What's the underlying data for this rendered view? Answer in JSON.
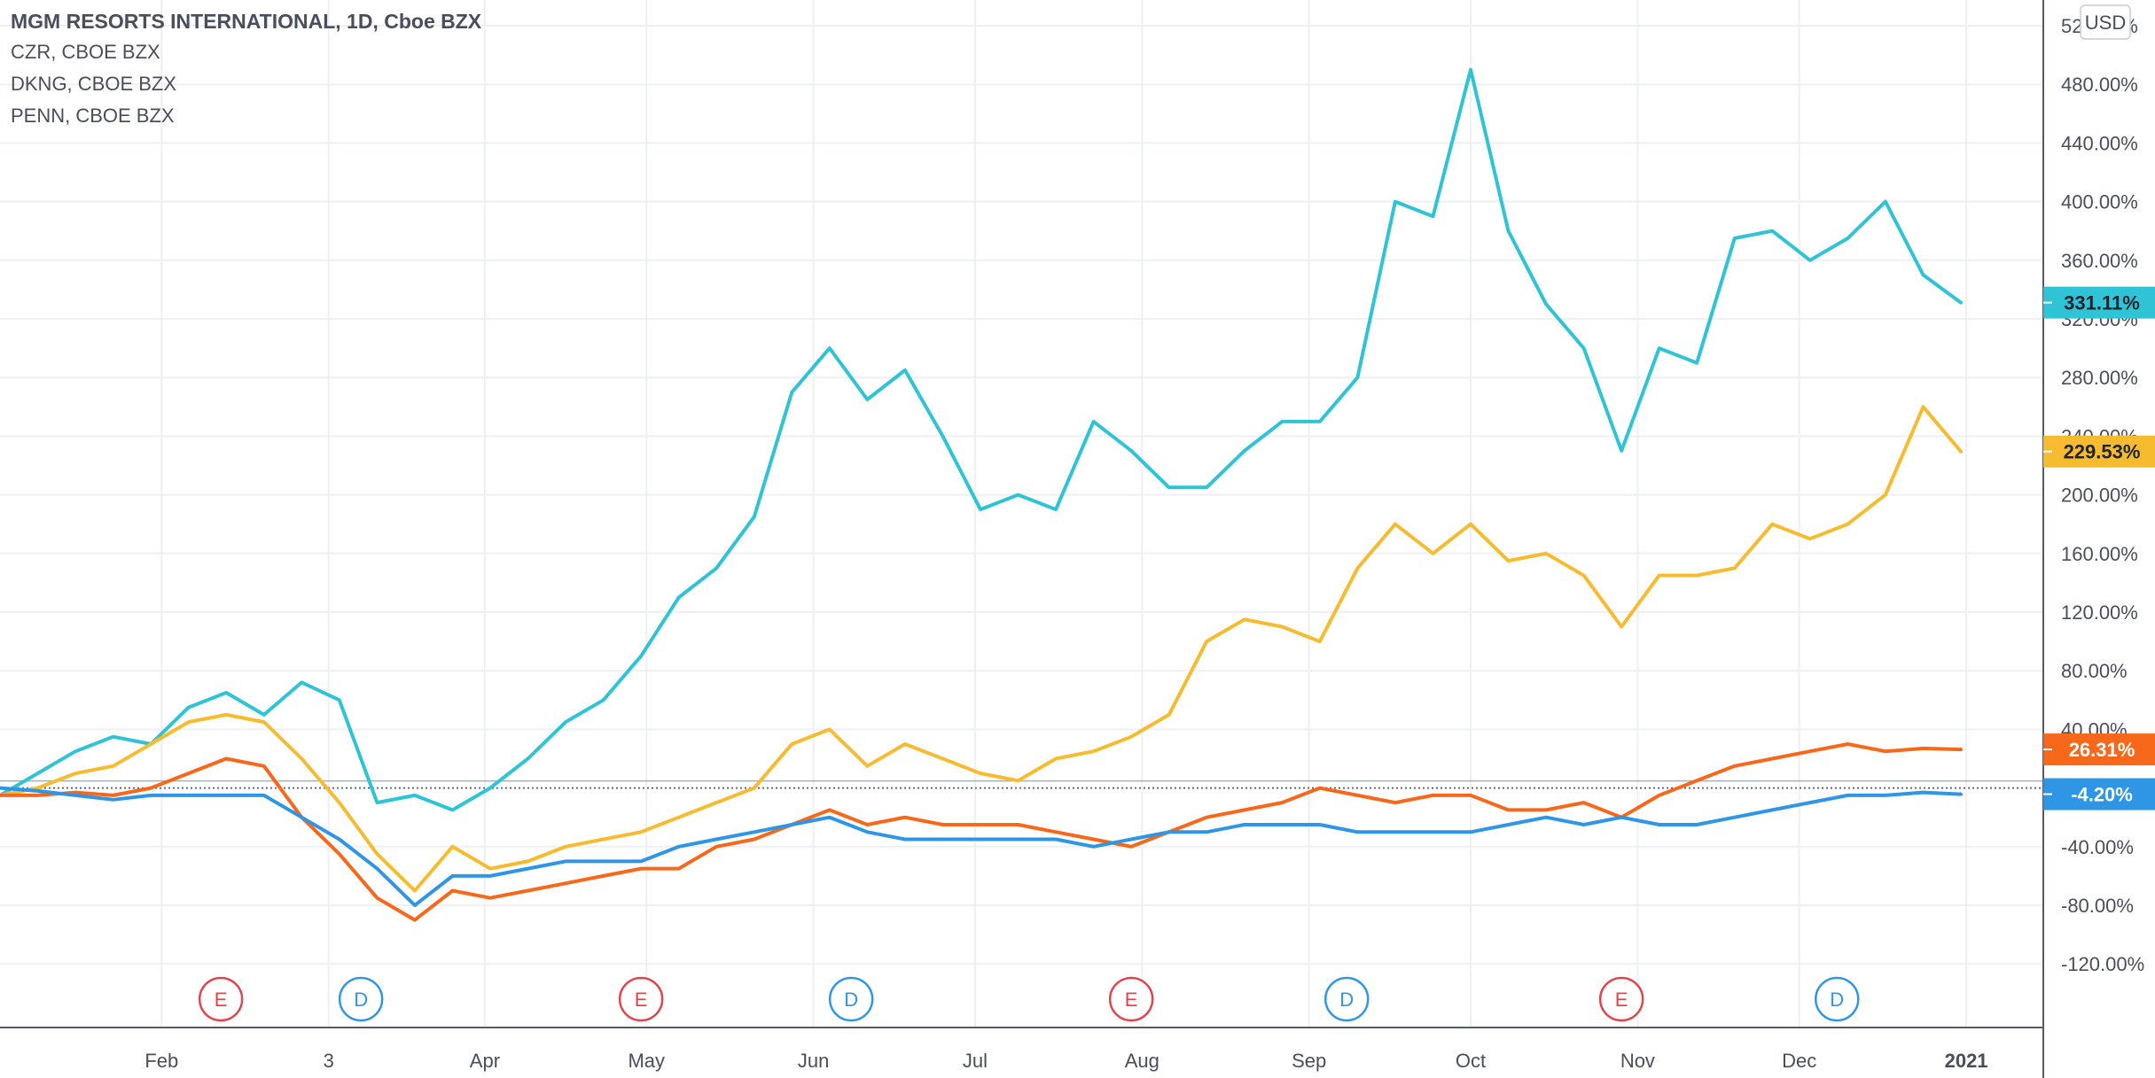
{
  "legend": {
    "main": "MGM RESORTS INTERNATIONAL, 1D, Cboe BZX",
    "comparisons": [
      "CZR, CBOE BZX",
      "DKNG, CBOE BZX",
      "PENN, CBOE BZX"
    ]
  },
  "currency_label": "USD",
  "colors": {
    "grid": "#eef0f3",
    "axis_line": "#555a66",
    "tick_text": "#4a4e5c",
    "baseline": "#5b6e80",
    "earnings": "#e0444c",
    "dividend": "#2f96e6"
  },
  "chart_data": {
    "type": "line",
    "title": "MGM RESORTS INTERNATIONAL, 1D, Cboe BZX",
    "xlabel": "",
    "ylabel": "",
    "x": [
      "2020-01-02",
      "2020-01-09",
      "2020-01-16",
      "2020-01-23",
      "2020-01-30",
      "2020-02-06",
      "2020-02-13",
      "2020-02-20",
      "2020-02-27",
      "2020-03-05",
      "2020-03-12",
      "2020-03-19",
      "2020-03-26",
      "2020-04-02",
      "2020-04-09",
      "2020-04-16",
      "2020-04-23",
      "2020-04-30",
      "2020-05-07",
      "2020-05-14",
      "2020-05-21",
      "2020-05-28",
      "2020-06-04",
      "2020-06-11",
      "2020-06-18",
      "2020-06-25",
      "2020-07-02",
      "2020-07-09",
      "2020-07-16",
      "2020-07-23",
      "2020-07-30",
      "2020-08-06",
      "2020-08-13",
      "2020-08-20",
      "2020-08-27",
      "2020-09-03",
      "2020-09-10",
      "2020-09-17",
      "2020-09-24",
      "2020-10-01",
      "2020-10-08",
      "2020-10-15",
      "2020-10-22",
      "2020-10-29",
      "2020-11-05",
      "2020-11-12",
      "2020-11-19",
      "2020-11-26",
      "2020-12-03",
      "2020-12-10",
      "2020-12-17",
      "2020-12-24",
      "2020-12-31"
    ],
    "series": [
      {
        "name": "DKNG",
        "color": "#2ec4d6",
        "last_label": "331.11%",
        "values": [
          -5,
          10,
          25,
          35,
          30,
          55,
          65,
          50,
          72,
          60,
          -10,
          -5,
          -15,
          0,
          20,
          45,
          60,
          90,
          130,
          150,
          185,
          270,
          300,
          265,
          285,
          240,
          190,
          200,
          190,
          250,
          230,
          205,
          205,
          230,
          250,
          250,
          280,
          400,
          390,
          490,
          380,
          330,
          300,
          230,
          300,
          290,
          375,
          380,
          360,
          375,
          400,
          350,
          331.11
        ]
      },
      {
        "name": "PENN",
        "color": "#f6bb2f",
        "last_label": "229.53%",
        "values": [
          -5,
          0,
          10,
          15,
          30,
          45,
          50,
          45,
          20,
          -10,
          -45,
          -70,
          -40,
          -55,
          -50,
          -40,
          -35,
          -30,
          -20,
          -10,
          0,
          30,
          40,
          15,
          30,
          20,
          10,
          5,
          20,
          25,
          35,
          50,
          100,
          115,
          110,
          100,
          150,
          180,
          160,
          180,
          155,
          160,
          145,
          110,
          145,
          145,
          150,
          180,
          170,
          180,
          200,
          260,
          229.53
        ]
      },
      {
        "name": "CZR",
        "color": "#f7681a",
        "last_label": "26.31%",
        "values": [
          -5,
          -5,
          -3,
          -5,
          0,
          10,
          20,
          15,
          -20,
          -45,
          -75,
          -90,
          -70,
          -75,
          -70,
          -65,
          -60,
          -55,
          -55,
          -40,
          -35,
          -25,
          -15,
          -25,
          -20,
          -25,
          -25,
          -25,
          -30,
          -35,
          -40,
          -30,
          -20,
          -15,
          -10,
          0,
          -5,
          -10,
          -5,
          -5,
          -15,
          -15,
          -10,
          -20,
          -5,
          5,
          15,
          20,
          25,
          30,
          25,
          27,
          26.31
        ]
      },
      {
        "name": "MGM",
        "color": "#2f96e6",
        "last_label": "-4.20%",
        "values": [
          0,
          -2,
          -5,
          -8,
          -5,
          -5,
          -5,
          -5,
          -20,
          -35,
          -55,
          -80,
          -60,
          -60,
          -55,
          -50,
          -50,
          -50,
          -40,
          -35,
          -30,
          -25,
          -20,
          -30,
          -35,
          -35,
          -35,
          -35,
          -35,
          -40,
          -35,
          -30,
          -30,
          -25,
          -25,
          -25,
          -30,
          -30,
          -30,
          -30,
          -25,
          -20,
          -25,
          -20,
          -25,
          -25,
          -20,
          -15,
          -10,
          -5,
          -5,
          -3,
          -4.2
        ]
      }
    ],
    "y_ticks": [
      "520.00%",
      "480.00%",
      "440.00%",
      "400.00%",
      "360.00%",
      "320.00%",
      "280.00%",
      "240.00%",
      "200.00%",
      "160.00%",
      "120.00%",
      "80.00%",
      "40.00%",
      "-40.00%",
      "-80.00%",
      "-120.00%"
    ],
    "ylim": [
      -140,
      560
    ],
    "baseline": 0,
    "x_ticks": [
      {
        "label": "Feb",
        "date": "2020-02-01",
        "bold": false
      },
      {
        "label": "3",
        "date": "2020-03-03",
        "bold": false
      },
      {
        "label": "Apr",
        "date": "2020-04-01",
        "bold": false
      },
      {
        "label": "May",
        "date": "2020-05-01",
        "bold": false
      },
      {
        "label": "Jun",
        "date": "2020-06-01",
        "bold": false
      },
      {
        "label": "Jul",
        "date": "2020-07-01",
        "bold": false
      },
      {
        "label": "Aug",
        "date": "2020-08-01",
        "bold": false
      },
      {
        "label": "Sep",
        "date": "2020-09-01",
        "bold": false
      },
      {
        "label": "Oct",
        "date": "2020-10-01",
        "bold": false
      },
      {
        "label": "Nov",
        "date": "2020-11-01",
        "bold": false
      },
      {
        "label": "Dec",
        "date": "2020-12-01",
        "bold": false
      },
      {
        "label": "2021",
        "date": "2021-01-01",
        "bold": true
      }
    ],
    "events": [
      {
        "type": "E",
        "date": "2020-02-12"
      },
      {
        "type": "D",
        "date": "2020-03-09"
      },
      {
        "type": "E",
        "date": "2020-04-30"
      },
      {
        "type": "D",
        "date": "2020-06-08"
      },
      {
        "type": "E",
        "date": "2020-07-30"
      },
      {
        "type": "D",
        "date": "2020-09-08"
      },
      {
        "type": "E",
        "date": "2020-10-29"
      },
      {
        "type": "D",
        "date": "2020-12-08"
      }
    ],
    "grid": true,
    "legend": "top-left"
  }
}
